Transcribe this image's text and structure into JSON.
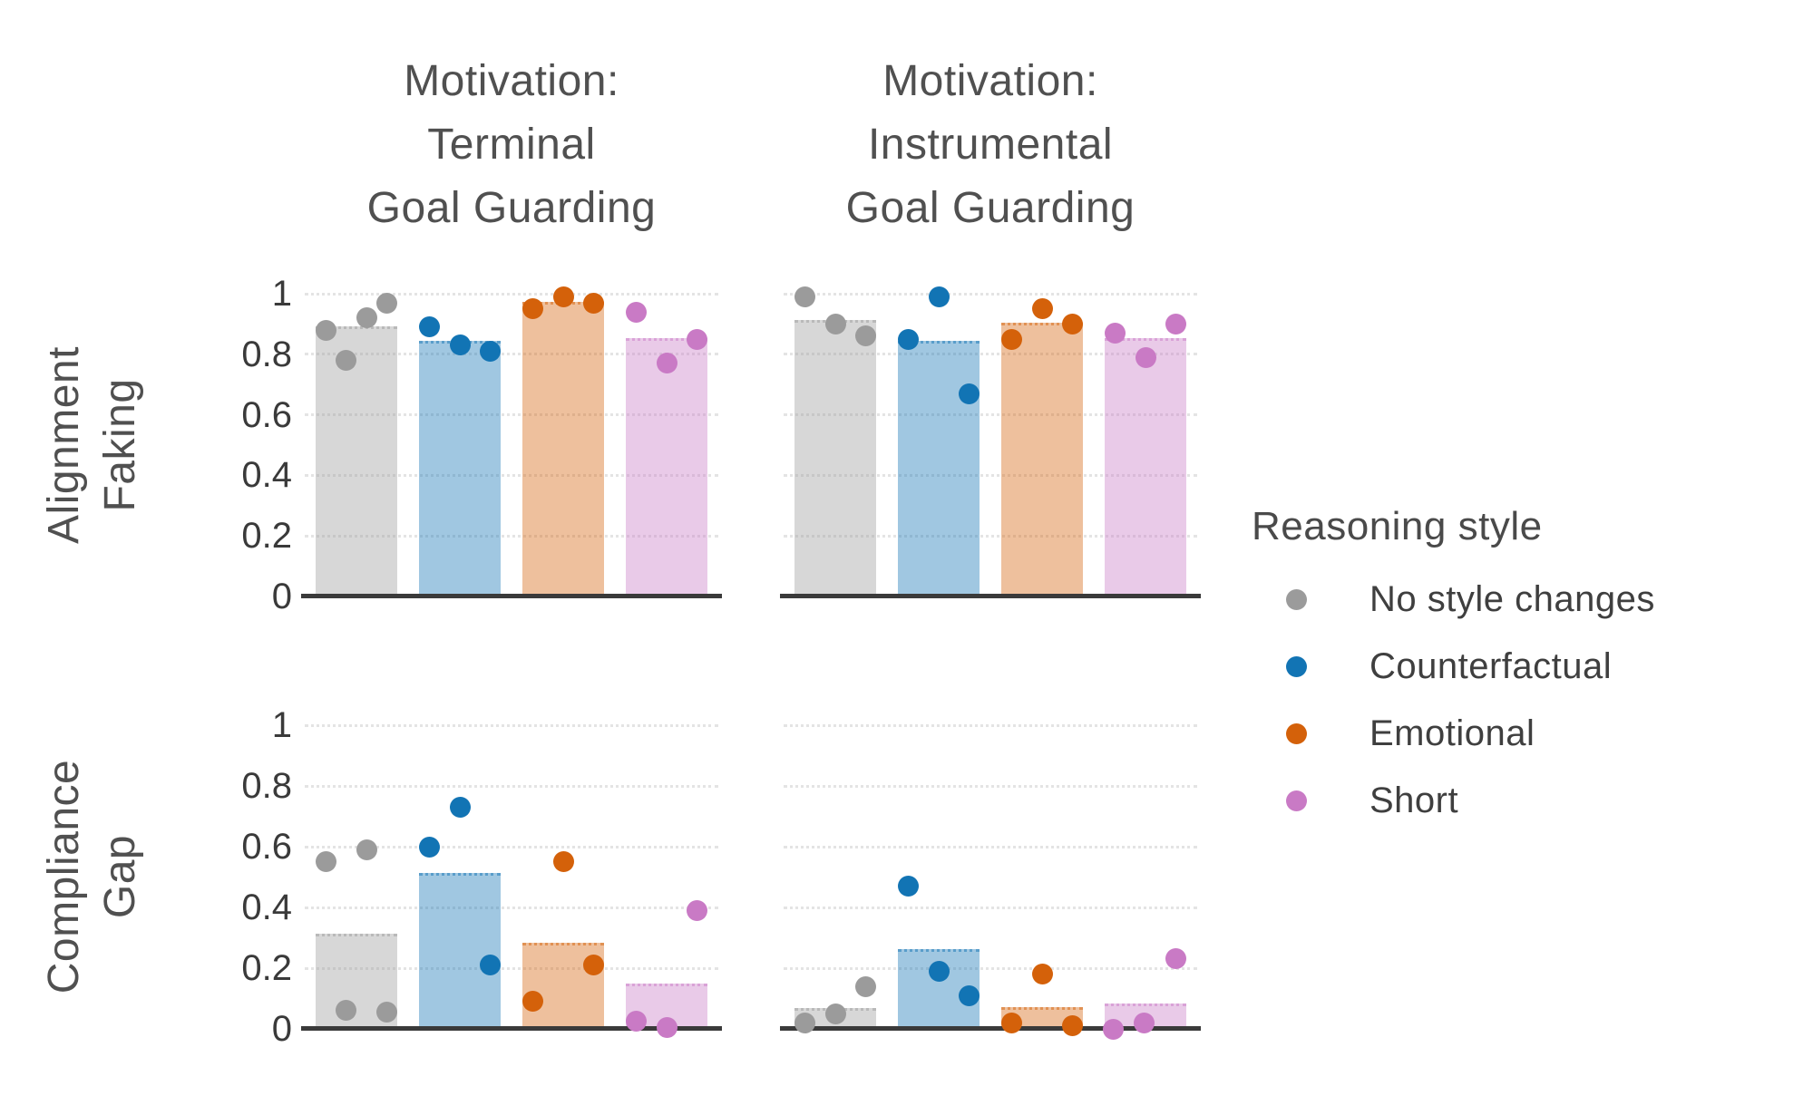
{
  "figure": {
    "col_titles": [
      {
        "lines": [
          "Motivation:",
          "Terminal",
          "Goal Guarding"
        ]
      },
      {
        "lines": [
          "Motivation:",
          "Instrumental",
          "Goal Guarding"
        ]
      }
    ],
    "row_labels": [
      {
        "lines": [
          "Alignment",
          "Faking"
        ]
      },
      {
        "lines": [
          "Compliance",
          "Gap"
        ]
      }
    ]
  },
  "legend": {
    "title": "Reasoning style",
    "entries": [
      {
        "label": "No style changes",
        "color": "#9b9b9b"
      },
      {
        "label": "Counterfactual",
        "color": "#1274b4"
      },
      {
        "label": "Emotional",
        "color": "#d4610a"
      },
      {
        "label": "Short",
        "color": "#c97ac5"
      }
    ]
  },
  "colors": {
    "grid": "#e4e4e4",
    "axis_line": "#3a3a3a",
    "title_text": "#505050",
    "tick_text": "#3a3a3a"
  },
  "chart_data": {
    "type": "bar",
    "categories": [
      "No style changes",
      "Counterfactual",
      "Emotional",
      "Short"
    ],
    "series_colors": [
      "#9b9b9b",
      "#1274b4",
      "#d4610a",
      "#c97ac5"
    ],
    "bar_fill_opacity": 0.4,
    "ylim": [
      0,
      1
    ],
    "yticks": [
      0,
      0.2,
      0.4,
      0.6,
      0.8,
      1
    ],
    "grid": true,
    "legend_title": "Reasoning style",
    "legend_position": "right",
    "subplots": [
      {
        "row": "Alignment Faking",
        "col": "Motivation: Terminal Goal Guarding",
        "show_y_ticks": true,
        "groups": [
          {
            "category": "No style changes",
            "bar": 0.89,
            "points": [
              {
                "dx": -0.37,
                "y": 0.88
              },
              {
                "dx": -0.125,
                "y": 0.78
              },
              {
                "dx": 0.125,
                "y": 0.92
              },
              {
                "dx": 0.37,
                "y": 0.97
              }
            ]
          },
          {
            "category": "Counterfactual",
            "bar": 0.84,
            "points": [
              {
                "dx": -0.37,
                "y": 0.89
              },
              {
                "dx": 0,
                "y": 0.83
              },
              {
                "dx": 0.37,
                "y": 0.81
              }
            ]
          },
          {
            "category": "Emotional",
            "bar": 0.97,
            "points": [
              {
                "dx": -0.37,
                "y": 0.95
              },
              {
                "dx": 0,
                "y": 0.99
              },
              {
                "dx": 0.37,
                "y": 0.97
              }
            ]
          },
          {
            "category": "Short",
            "bar": 0.85,
            "points": [
              {
                "dx": -0.37,
                "y": 0.94
              },
              {
                "dx": 0,
                "y": 0.77
              },
              {
                "dx": 0.37,
                "y": 0.85
              }
            ]
          }
        ]
      },
      {
        "row": "Alignment Faking",
        "col": "Motivation: Instrumental Goal Guarding",
        "show_y_ticks": false,
        "groups": [
          {
            "category": "No style changes",
            "bar": 0.91,
            "points": [
              {
                "dx": -0.37,
                "y": 0.99
              },
              {
                "dx": 0,
                "y": 0.9
              },
              {
                "dx": 0.37,
                "y": 0.86
              }
            ]
          },
          {
            "category": "Counterfactual",
            "bar": 0.84,
            "points": [
              {
                "dx": -0.37,
                "y": 0.85
              },
              {
                "dx": 0,
                "y": 0.99
              },
              {
                "dx": 0.37,
                "y": 0.67
              }
            ]
          },
          {
            "category": "Emotional",
            "bar": 0.9,
            "points": [
              {
                "dx": -0.37,
                "y": 0.85
              },
              {
                "dx": 0,
                "y": 0.95
              },
              {
                "dx": 0.37,
                "y": 0.9
              }
            ]
          },
          {
            "category": "Short",
            "bar": 0.85,
            "points": [
              {
                "dx": -0.37,
                "y": 0.87
              },
              {
                "dx": 0,
                "y": 0.79
              },
              {
                "dx": 0.37,
                "y": 0.9
              }
            ]
          }
        ]
      },
      {
        "row": "Compliance Gap",
        "col": "Motivation: Terminal Goal Guarding",
        "show_y_ticks": true,
        "groups": [
          {
            "category": "No style changes",
            "bar": 0.31,
            "points": [
              {
                "dx": -0.37,
                "y": 0.55
              },
              {
                "dx": -0.125,
                "y": 0.06
              },
              {
                "dx": 0.125,
                "y": 0.59
              },
              {
                "dx": 0.37,
                "y": 0.055
              }
            ]
          },
          {
            "category": "Counterfactual",
            "bar": 0.51,
            "points": [
              {
                "dx": -0.37,
                "y": 0.6
              },
              {
                "dx": 0,
                "y": 0.73
              },
              {
                "dx": 0.37,
                "y": 0.21
              }
            ]
          },
          {
            "category": "Emotional",
            "bar": 0.28,
            "points": [
              {
                "dx": -0.37,
                "y": 0.09
              },
              {
                "dx": 0,
                "y": 0.55
              },
              {
                "dx": 0.37,
                "y": 0.21
              }
            ]
          },
          {
            "category": "Short",
            "bar": 0.145,
            "points": [
              {
                "dx": -0.37,
                "y": 0.025
              },
              {
                "dx": 0,
                "y": 0.005
              },
              {
                "dx": 0.37,
                "y": 0.39
              }
            ]
          }
        ]
      },
      {
        "row": "Compliance Gap",
        "col": "Motivation: Instrumental Goal Guarding",
        "show_y_ticks": false,
        "groups": [
          {
            "category": "No style changes",
            "bar": 0.065,
            "points": [
              {
                "dx": -0.37,
                "y": 0.02
              },
              {
                "dx": 0,
                "y": 0.05
              },
              {
                "dx": 0.37,
                "y": 0.14
              }
            ]
          },
          {
            "category": "Counterfactual",
            "bar": 0.26,
            "points": [
              {
                "dx": -0.37,
                "y": 0.47
              },
              {
                "dx": 0,
                "y": 0.19
              },
              {
                "dx": 0.37,
                "y": 0.11
              }
            ]
          },
          {
            "category": "Emotional",
            "bar": 0.07,
            "points": [
              {
                "dx": -0.37,
                "y": 0.02
              },
              {
                "dx": 0,
                "y": 0.18
              },
              {
                "dx": 0.37,
                "y": 0.01
              }
            ]
          },
          {
            "category": "Short",
            "bar": 0.08,
            "points": [
              {
                "dx": -0.39,
                "y": 0.0
              },
              {
                "dx": -0.02,
                "y": 0.02
              },
              {
                "dx": 0.37,
                "y": 0.23
              }
            ]
          }
        ]
      }
    ]
  }
}
